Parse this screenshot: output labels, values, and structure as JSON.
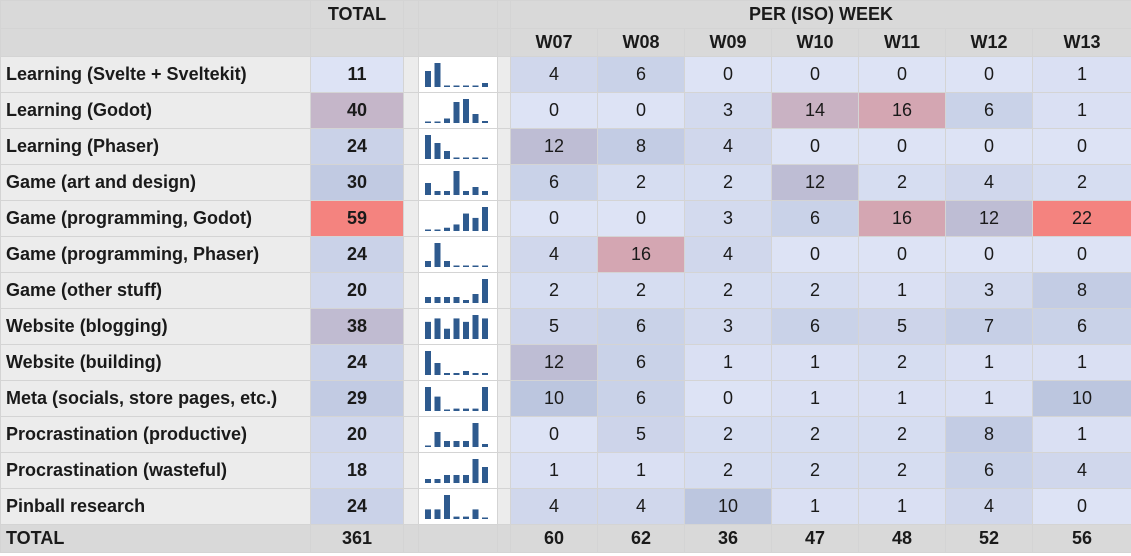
{
  "header": {
    "total_label": "TOTAL",
    "per_week_label": "PER (ISO) WEEK",
    "weeks": [
      "W07",
      "W08",
      "W09",
      "W10",
      "W11",
      "W12",
      "W13"
    ]
  },
  "colors": {
    "low": "#dde3f5",
    "mid": "#b9c3dd",
    "high": "#f4837f",
    "sparkline_bar": "#2e5a8e"
  },
  "rows": [
    {
      "label": "Learning (Svelte + Sveltekit)",
      "total": 11,
      "weeks": [
        4,
        6,
        0,
        0,
        0,
        0,
        1
      ]
    },
    {
      "label": "Learning (Godot)",
      "total": 40,
      "weeks": [
        0,
        0,
        3,
        14,
        16,
        6,
        1
      ]
    },
    {
      "label": "Learning (Phaser)",
      "total": 24,
      "weeks": [
        12,
        8,
        4,
        0,
        0,
        0,
        0
      ]
    },
    {
      "label": "Game (art and design)",
      "total": 30,
      "weeks": [
        6,
        2,
        2,
        12,
        2,
        4,
        2
      ]
    },
    {
      "label": "Game (programming, Godot)",
      "total": 59,
      "weeks": [
        0,
        0,
        3,
        6,
        16,
        12,
        22
      ]
    },
    {
      "label": "Game (programming, Phaser)",
      "total": 24,
      "weeks": [
        4,
        16,
        4,
        0,
        0,
        0,
        0
      ]
    },
    {
      "label": "Game (other stuff)",
      "total": 20,
      "weeks": [
        2,
        2,
        2,
        2,
        1,
        3,
        8
      ]
    },
    {
      "label": "Website (blogging)",
      "total": 38,
      "weeks": [
        5,
        6,
        3,
        6,
        5,
        7,
        6
      ]
    },
    {
      "label": "Website (building)",
      "total": 24,
      "weeks": [
        12,
        6,
        1,
        1,
        2,
        1,
        1
      ]
    },
    {
      "label": "Meta (socials, store pages, etc.)",
      "total": 29,
      "weeks": [
        10,
        6,
        0,
        1,
        1,
        1,
        10
      ]
    },
    {
      "label": "Procrastination (productive)",
      "total": 20,
      "weeks": [
        0,
        5,
        2,
        2,
        2,
        8,
        1
      ]
    },
    {
      "label": "Procrastination (wasteful)",
      "total": 18,
      "weeks": [
        1,
        1,
        2,
        2,
        2,
        6,
        4
      ]
    },
    {
      "label": "Pinball research",
      "total": 24,
      "weeks": [
        4,
        4,
        10,
        1,
        1,
        4,
        0
      ]
    }
  ],
  "footer": {
    "label": "TOTAL",
    "total": 361,
    "weeks": [
      60,
      62,
      36,
      47,
      48,
      52,
      56
    ]
  }
}
